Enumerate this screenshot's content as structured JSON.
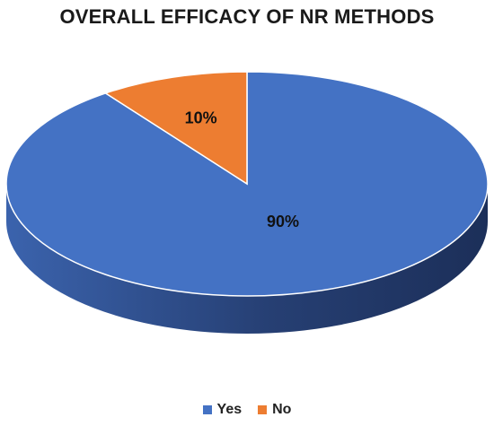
{
  "chart_data": {
    "type": "pie",
    "title": "OVERALL EFFICACY OF NR METHODS",
    "categories": [
      "Yes",
      "No"
    ],
    "values": [
      90,
      10
    ],
    "data_labels": [
      "90%",
      "10%"
    ],
    "colors": [
      "#4472C4",
      "#ED7D31"
    ],
    "legend_position": "bottom",
    "style": "3d"
  }
}
